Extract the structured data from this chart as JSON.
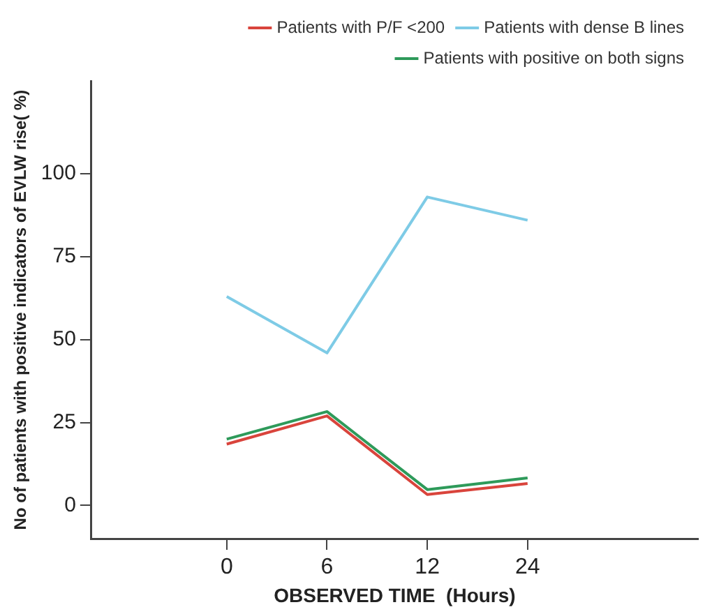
{
  "chart_data": {
    "type": "line",
    "xlabel": "OBSERVED TIME  (Hours)",
    "ylabel": "No of patients with positive indicators of EVLW rise( %)",
    "categories": [
      "0",
      "6",
      "12",
      "24"
    ],
    "series": [
      {
        "name": "Patients with P/F <200",
        "color": "#d9443c",
        "values": [
          18.5,
          27,
          3.3,
          6.6
        ]
      },
      {
        "name": "Patients with dense B lines",
        "color": "#7ecbe6",
        "values": [
          63,
          46,
          93,
          86
        ]
      },
      {
        "name": "Patients with positive on both signs",
        "color": "#2e9a5a",
        "values": [
          20,
          28.3,
          4.8,
          8.3
        ]
      }
    ],
    "ylim": [
      -10,
      128
    ],
    "yticks": [
      0,
      25,
      50,
      75,
      100
    ],
    "grid": false,
    "legend": "top right",
    "marker": "none",
    "line_style": "solid"
  }
}
